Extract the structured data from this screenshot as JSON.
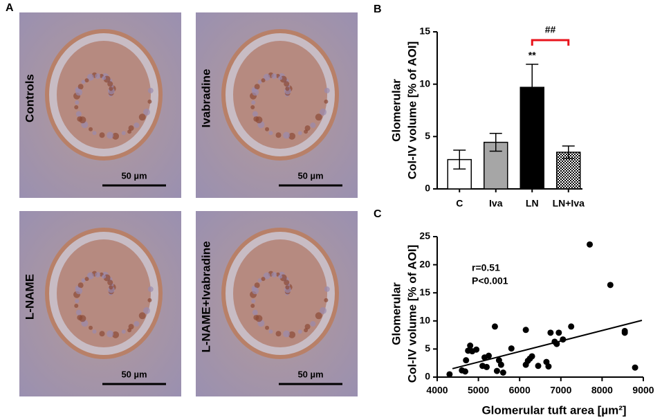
{
  "panel_labels": [
    "A",
    "B",
    "C"
  ],
  "micrographs": [
    {
      "label": "Controls",
      "scale_bar": "50 µm"
    },
    {
      "label": "Ivabradine",
      "scale_bar": "50 µm"
    },
    {
      "label": "L-NAME",
      "scale_bar": "50 µm"
    },
    {
      "label": "L-NAME+Ivabradine",
      "scale_bar": "50 µm"
    }
  ],
  "chart_data": [
    {
      "type": "bar",
      "ylabel": [
        "Glomerular",
        "Col-IV volume [% of AOI]"
      ],
      "categories": [
        "C",
        "Iva",
        "LN",
        "LN+Iva"
      ],
      "values": [
        2.8,
        4.45,
        9.7,
        3.5
      ],
      "errors": [
        0.9,
        0.85,
        2.2,
        0.6
      ],
      "colors": [
        "#ffffff",
        "#a6a6a6",
        "#000000",
        "checkered"
      ],
      "ylim": [
        0,
        15
      ],
      "yticks": [
        0,
        5,
        10,
        15
      ],
      "annotations": [
        {
          "text": "**",
          "color": "#000000"
        },
        {
          "text": "##",
          "color": "#e8141c"
        }
      ]
    },
    {
      "type": "scatter",
      "ylabel": [
        "Glomerular",
        "Col-IV volume [% of AOI]"
      ],
      "xlabel": "Glomerular tuft area [µm²]",
      "x": [
        4300,
        4600,
        4680,
        4700,
        4750,
        4800,
        4850,
        4950,
        5100,
        5150,
        5200,
        5250,
        5400,
        5450,
        5500,
        5550,
        5600,
        5800,
        6150,
        6150,
        6200,
        6250,
        6300,
        6450,
        6650,
        6700,
        6750,
        6850,
        6900,
        6950,
        7050,
        7250,
        7700,
        8200,
        8550,
        8550,
        8800
      ],
      "values": [
        0.5,
        1.2,
        1.0,
        3.0,
        4.7,
        5.6,
        4.6,
        4.9,
        2.0,
        3.5,
        1.8,
        3.8,
        9.0,
        1.1,
        3.0,
        2.2,
        0.8,
        5.1,
        8.4,
        2.2,
        2.9,
        3.3,
        3.7,
        2.0,
        2.7,
        1.9,
        7.9,
        6.3,
        5.9,
        7.9,
        6.7,
        9.0,
        23.6,
        16.4,
        8.2,
        7.9,
        1.7
      ],
      "color": "#000000",
      "trendline": {
        "x": [
          4370,
          8966
        ],
        "y": [
          1.5,
          10.1
        ]
      },
      "xlim": [
        4000,
        9000
      ],
      "xticks": [
        4000,
        5000,
        6000,
        7000,
        8000,
        9000
      ],
      "ylim": [
        0,
        25
      ],
      "yticks": [
        0,
        5,
        10,
        15,
        20,
        25
      ],
      "annotations": [
        {
          "text": "r=0.51",
          "color": "#e8141c"
        },
        {
          "text": "P<0.001",
          "color": "#e8141c"
        }
      ]
    }
  ]
}
